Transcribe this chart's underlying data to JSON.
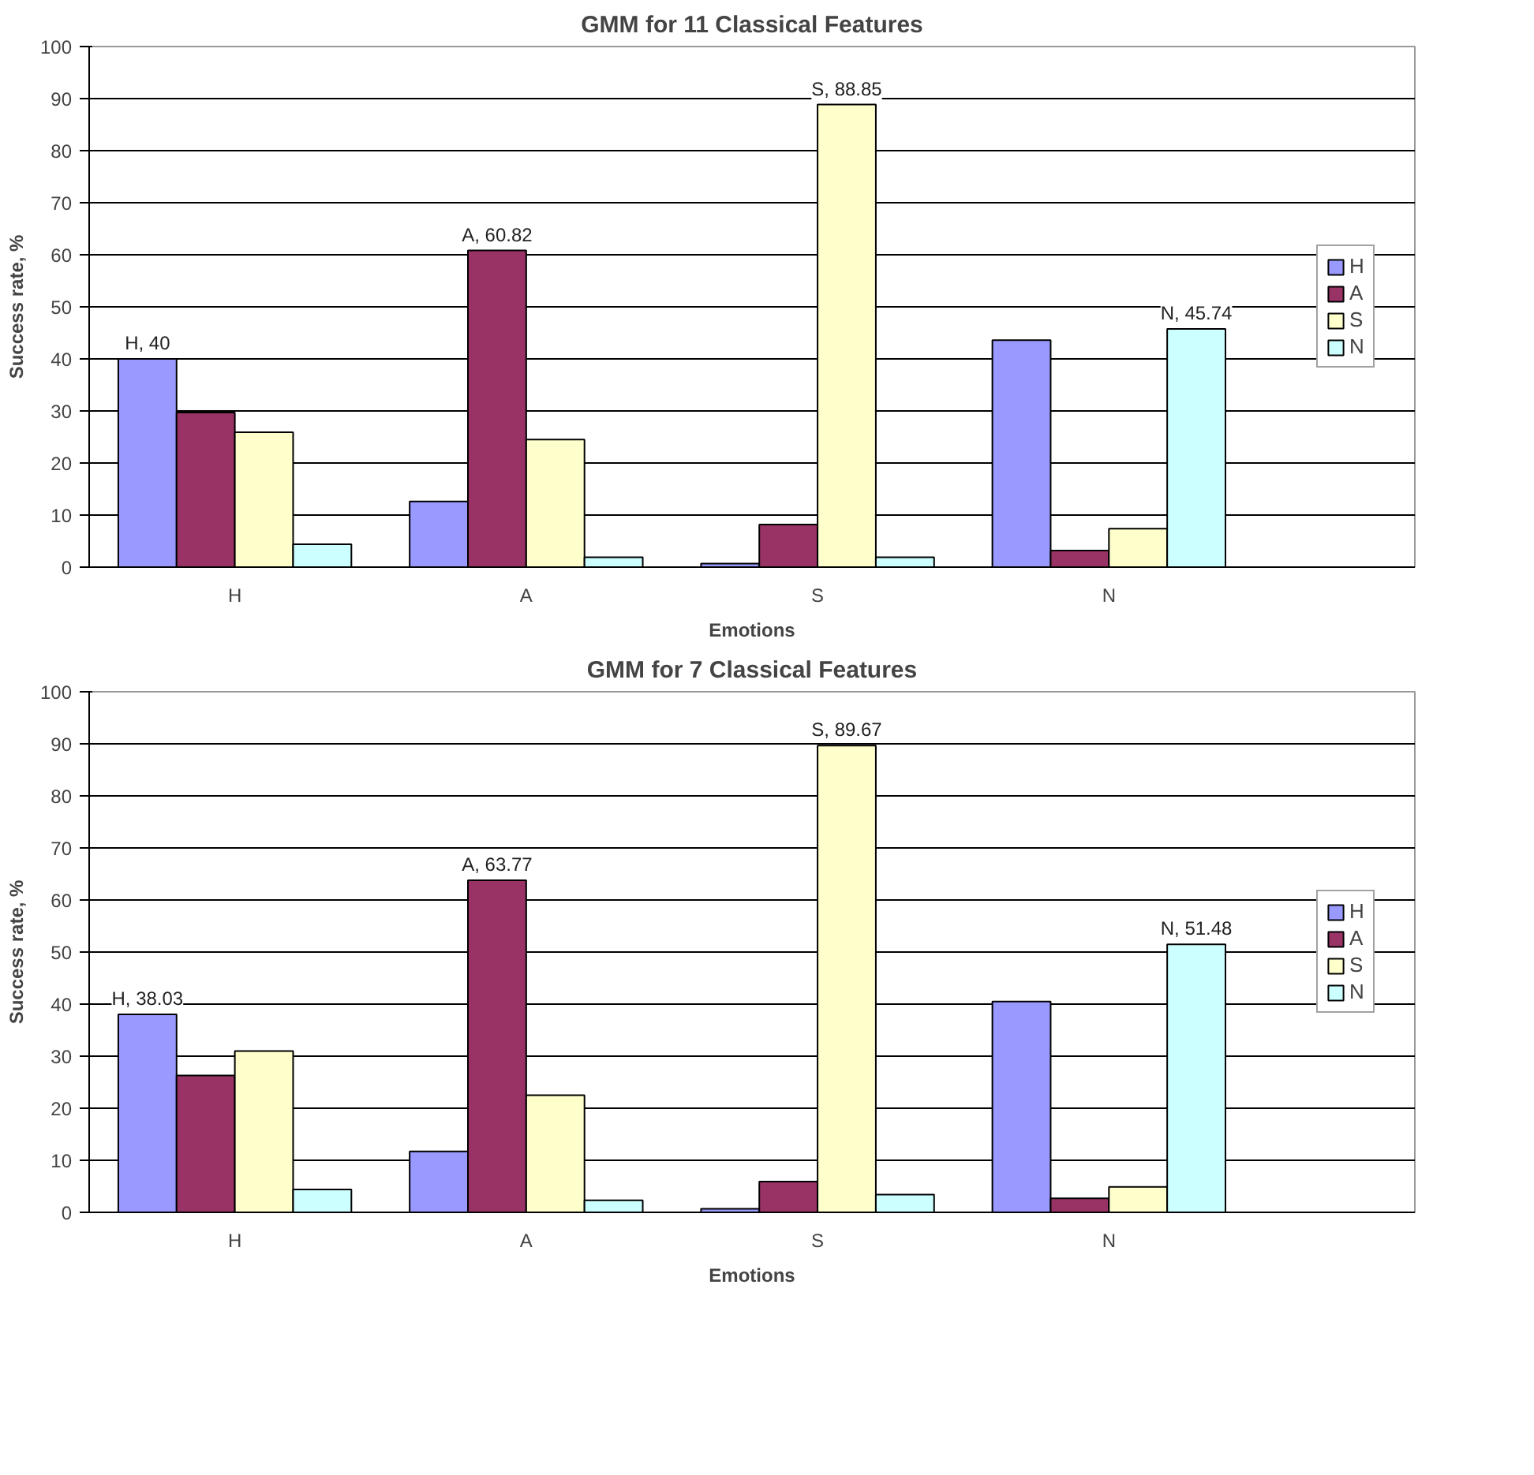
{
  "chart_data": [
    {
      "type": "bar",
      "title": "GMM for 11 Classical Features",
      "xlabel": "Emotions",
      "ylabel": "Success rate, %",
      "categories": [
        "H",
        "A",
        "S",
        "N"
      ],
      "ylim": [
        0,
        100
      ],
      "yticks": [
        0,
        10,
        20,
        30,
        40,
        50,
        60,
        70,
        80,
        90,
        100
      ],
      "grid": "y",
      "legend": "right",
      "series": [
        {
          "name": "H",
          "color": "#9999ff",
          "values": [
            40,
            12.6,
            0.7,
            43.6
          ],
          "value_labels": [
            "H, 40",
            null,
            null,
            null
          ]
        },
        {
          "name": "A",
          "color": "#993366",
          "values": [
            29.7,
            60.82,
            8.2,
            3.2
          ],
          "value_labels": [
            null,
            "A, 60.82",
            null,
            null
          ]
        },
        {
          "name": "S",
          "color": "#ffffcc",
          "values": [
            25.9,
            24.5,
            88.85,
            7.4
          ],
          "value_labels": [
            null,
            null,
            "S, 88.85",
            null
          ]
        },
        {
          "name": "N",
          "color": "#ccffff",
          "values": [
            4.4,
            1.9,
            1.9,
            45.74
          ],
          "value_labels": [
            null,
            null,
            null,
            "N, 45.74"
          ]
        }
      ]
    },
    {
      "type": "bar",
      "title": "GMM for 7 Classical Features",
      "xlabel": "Emotions",
      "ylabel": "Success rate, %",
      "categories": [
        "H",
        "A",
        "S",
        "N"
      ],
      "ylim": [
        0,
        100
      ],
      "yticks": [
        0,
        10,
        20,
        30,
        40,
        50,
        60,
        70,
        80,
        90,
        100
      ],
      "grid": "y",
      "legend": "right",
      "series": [
        {
          "name": "H",
          "color": "#9999ff",
          "values": [
            38.03,
            11.7,
            0.7,
            40.5
          ],
          "value_labels": [
            "H, 38.03",
            null,
            null,
            null
          ]
        },
        {
          "name": "A",
          "color": "#993366",
          "values": [
            26.3,
            63.77,
            5.9,
            2.7
          ],
          "value_labels": [
            null,
            "A, 63.77",
            null,
            null
          ]
        },
        {
          "name": "S",
          "color": "#ffffcc",
          "values": [
            31.0,
            22.5,
            89.67,
            4.9
          ],
          "value_labels": [
            null,
            null,
            "S, 89.67",
            null
          ]
        },
        {
          "name": "N",
          "color": "#ccffff",
          "values": [
            4.4,
            2.3,
            3.4,
            51.48
          ],
          "value_labels": [
            null,
            null,
            null,
            "N, 51.48"
          ]
        }
      ]
    }
  ]
}
